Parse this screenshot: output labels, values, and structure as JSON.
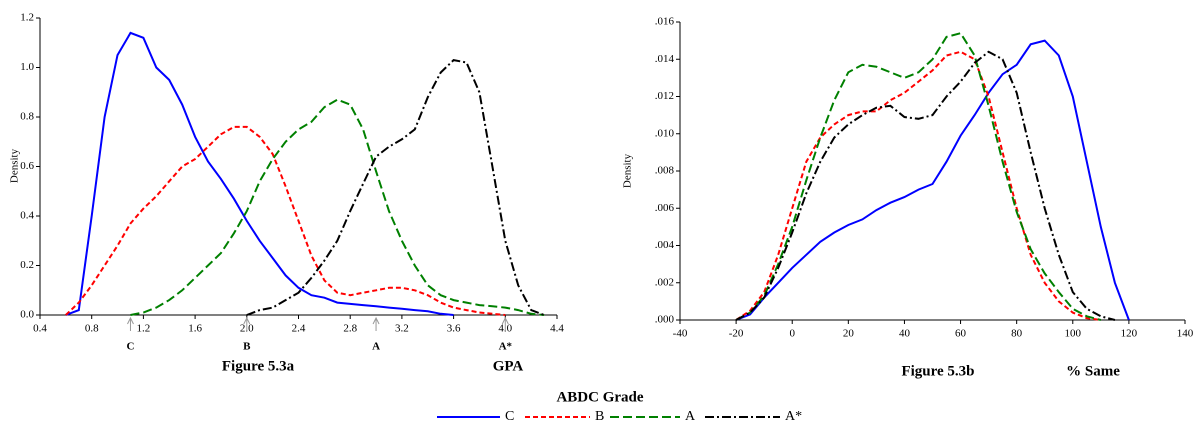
{
  "chart_data": [
    {
      "type": "line",
      "caption": "Figure 5.3a",
      "x_label": "GPA",
      "y_label": "Density",
      "legend_title": "ABDC Grade",
      "xlim": [
        0.4,
        4.4
      ],
      "xticks": [
        0.4,
        0.8,
        1.2,
        1.6,
        {
          "value": 2,
          "label": "2.0"
        },
        2.4,
        2.8,
        3.2,
        3.6,
        {
          "value": 4,
          "label": "4.0"
        },
        4.4
      ],
      "ylim": [
        0,
        1.2
      ],
      "yticks": [
        {
          "value": 0,
          "label": "0.0"
        },
        0.2,
        0.4,
        0.6,
        0.8,
        {
          "value": 1,
          "label": "1.0"
        },
        1.2
      ],
      "markers": [
        {
          "x": 1.1,
          "label": "C"
        },
        {
          "x": 2,
          "label": "B"
        },
        {
          "x": 3,
          "label": "A"
        },
        {
          "x": 4,
          "label": "A*"
        }
      ],
      "x": [
        0.6,
        0.7,
        0.8,
        0.9,
        1.0,
        1.1,
        1.2,
        1.3,
        1.4,
        1.5,
        1.6,
        1.7,
        1.8,
        1.9,
        2.0,
        2.1,
        2.2,
        2.3,
        2.4,
        2.5,
        2.6,
        2.7,
        2.8,
        2.9,
        3.0,
        3.1,
        3.2,
        3.3,
        3.4,
        3.5,
        3.6,
        3.7,
        3.8,
        3.9,
        4.0,
        4.1,
        4.2,
        4.3
      ],
      "series": [
        {
          "name": "C",
          "color": "#0000ff",
          "dash": "solid",
          "values": [
            0,
            0.02,
            0.4,
            0.8,
            1.05,
            1.14,
            1.12,
            1.0,
            0.95,
            0.85,
            0.72,
            0.62,
            0.55,
            0.47,
            0.38,
            0.3,
            0.23,
            0.16,
            0.11,
            0.08,
            0.07,
            0.05,
            0.045,
            0.04,
            0.035,
            0.03,
            0.025,
            0.02,
            0.015,
            0.005,
            0,
            null,
            null,
            null,
            null,
            null,
            null,
            null
          ]
        },
        {
          "name": "B",
          "color": "#ff0000",
          "dash": "dashed",
          "values": [
            0,
            0.05,
            0.12,
            0.2,
            0.28,
            0.37,
            0.43,
            0.48,
            0.54,
            0.6,
            0.63,
            0.68,
            0.73,
            0.76,
            0.76,
            0.72,
            0.65,
            0.52,
            0.38,
            0.24,
            0.14,
            0.09,
            0.08,
            0.09,
            0.1,
            0.11,
            0.11,
            0.1,
            0.08,
            0.05,
            0.03,
            0.02,
            0.01,
            0.005,
            0,
            null,
            null,
            null
          ]
        },
        {
          "name": "A",
          "color": "#008000",
          "dash": "longdash",
          "values": [
            null,
            null,
            null,
            null,
            null,
            0,
            0.01,
            0.03,
            0.06,
            0.1,
            0.15,
            0.2,
            0.25,
            0.33,
            0.42,
            0.54,
            0.63,
            0.7,
            0.75,
            0.78,
            0.84,
            0.87,
            0.85,
            0.75,
            0.58,
            0.42,
            0.3,
            0.2,
            0.12,
            0.08,
            0.06,
            0.05,
            0.04,
            0.035,
            0.03,
            0.02,
            0.005,
            0
          ]
        },
        {
          "name": "A*",
          "color": "#000000",
          "dash": "dashdot",
          "values": [
            null,
            null,
            null,
            null,
            null,
            null,
            null,
            null,
            null,
            null,
            null,
            null,
            null,
            null,
            0,
            0.02,
            0.03,
            0.06,
            0.09,
            0.15,
            0.22,
            0.3,
            0.42,
            0.53,
            0.64,
            0.68,
            0.71,
            0.75,
            0.88,
            0.98,
            1.03,
            1.02,
            0.9,
            0.6,
            0.3,
            0.12,
            0.02,
            0
          ]
        }
      ]
    },
    {
      "type": "line",
      "caption": "Figure 5.3b",
      "x_label": "% Same",
      "y_label": "Density",
      "xlim": [
        -40,
        140
      ],
      "xticks": [
        -40,
        -20,
        0,
        20,
        40,
        60,
        80,
        100,
        120,
        140
      ],
      "ylim": [
        0,
        0.016
      ],
      "yticks": [
        {
          "value": 0,
          "label": ".000"
        },
        {
          "value": 0.002,
          "label": ".002"
        },
        {
          "value": 0.004,
          "label": ".004"
        },
        {
          "value": 0.006,
          "label": ".006"
        },
        {
          "value": 0.008,
          "label": ".008"
        },
        {
          "value": 0.01,
          "label": ".010"
        },
        {
          "value": 0.012,
          "label": ".012"
        },
        {
          "value": 0.014,
          "label": ".014"
        },
        {
          "value": 0.016,
          "label": ".016"
        }
      ],
      "x": [
        -20,
        -15,
        -10,
        -5,
        0,
        5,
        10,
        15,
        20,
        25,
        30,
        35,
        40,
        45,
        50,
        55,
        60,
        65,
        70,
        75,
        80,
        85,
        90,
        95,
        100,
        105,
        110,
        115,
        120
      ],
      "series": [
        {
          "color": "#0000ff",
          "dash": "solid",
          "values": [
            0,
            0.0003,
            0.0012,
            0.002,
            0.0028,
            0.0035,
            0.0042,
            0.0047,
            0.0051,
            0.0054,
            0.0059,
            0.0063,
            0.0066,
            0.007,
            0.0073,
            0.0085,
            0.0099,
            0.011,
            0.0122,
            0.0132,
            0.0137,
            0.0148,
            0.015,
            0.0142,
            0.012,
            0.0085,
            0.005,
            0.002,
            0
          ]
        },
        {
          "color": "#ff0000",
          "dash": "dashed",
          "values": [
            0,
            0.0005,
            0.0015,
            0.0035,
            0.006,
            0.0085,
            0.0098,
            0.0105,
            0.011,
            0.0112,
            0.0112,
            0.0118,
            0.0122,
            0.0128,
            0.0134,
            0.0142,
            0.0144,
            0.014,
            0.012,
            0.009,
            0.006,
            0.0035,
            0.002,
            0.001,
            0.0004,
            0.0001,
            0,
            null,
            null
          ]
        },
        {
          "color": "#008000",
          "dash": "longdash",
          "values": [
            0,
            0.0004,
            0.0013,
            0.003,
            0.005,
            0.0075,
            0.0098,
            0.0118,
            0.0133,
            0.0137,
            0.0136,
            0.0133,
            0.013,
            0.0133,
            0.014,
            0.0152,
            0.0154,
            0.0142,
            0.0115,
            0.0085,
            0.0058,
            0.0038,
            0.0025,
            0.0015,
            0.0006,
            0.0002,
            0,
            null,
            null
          ]
        },
        {
          "color": "#000000",
          "dash": "dashdot",
          "values": [
            0,
            0.0004,
            0.0012,
            0.0028,
            0.0047,
            0.0068,
            0.0085,
            0.0098,
            0.0105,
            0.011,
            0.0114,
            0.0115,
            0.0109,
            0.0108,
            0.011,
            0.012,
            0.0128,
            0.0138,
            0.0144,
            0.014,
            0.0122,
            0.009,
            0.006,
            0.0035,
            0.0015,
            0.0006,
            0.0002,
            0,
            null
          ]
        }
      ]
    }
  ]
}
